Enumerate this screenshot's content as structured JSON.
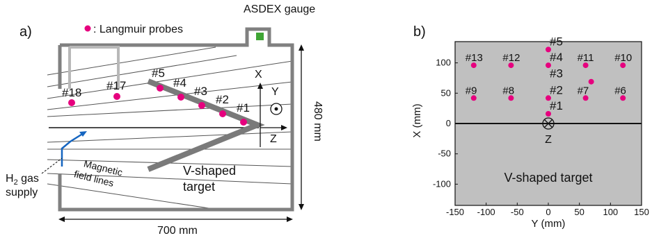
{
  "panel_a": {
    "panel_label": "a)",
    "legend": ": Langmuir probes",
    "gauge_label": "ASDEX gauge",
    "height_dim": "480 mm",
    "width_dim": "700 mm",
    "gas_label_h": "H",
    "gas_label_sub": "2",
    "gas_label_rest": " gas",
    "gas_label_line2": "supply",
    "field_label_1": "Magnetic",
    "field_label_2": "field lines",
    "target_label_1": "V-shaped",
    "target_label_2": "target",
    "axis_x": "X",
    "axis_y": "Y",
    "axis_z": "Z",
    "probe_labels": [
      "#18",
      "#17",
      "#5",
      "#4",
      "#3",
      "#2",
      "#1"
    ],
    "colors": {
      "probe": "#e6007e",
      "gauge": "#3fa535",
      "wall": "#808080",
      "field": "#5a5a5a",
      "gas": "#1565c0",
      "box": "#b0b0b0"
    }
  },
  "panel_b": {
    "panel_label": "b)",
    "target_label": "V-shaped target",
    "z_label": "Z",
    "probes": [
      {
        "name": "#13",
        "y": -120,
        "x": 96
      },
      {
        "name": "#12",
        "y": -60,
        "x": 96
      },
      {
        "name": "#11",
        "y": 60,
        "x": 96
      },
      {
        "name": "#10",
        "y": 120,
        "x": 96
      },
      {
        "name": "#9",
        "y": -120,
        "x": 42
      },
      {
        "name": "#8",
        "y": -60,
        "x": 42
      },
      {
        "name": "#7",
        "y": 60,
        "x": 42
      },
      {
        "name": "#6",
        "y": 120,
        "x": 42
      },
      {
        "name": "#5",
        "y": 0,
        "x": 122
      },
      {
        "name": "#4",
        "y": 0,
        "x": 96
      },
      {
        "name": "#3",
        "y": 69,
        "x": 69
      },
      {
        "name": "#2",
        "y": 0,
        "x": 42
      },
      {
        "name": "#1",
        "y": 0,
        "x": 16
      }
    ],
    "chart_data": {
      "type": "scatter",
      "xlabel": "Y (mm)",
      "ylabel": "X (mm)",
      "xlim": [
        -150,
        150
      ],
      "ylim": [
        -135,
        135
      ],
      "xticks": [
        -150,
        -100,
        -50,
        0,
        50,
        100,
        150
      ],
      "yticks": [
        -100,
        -50,
        0,
        50,
        100
      ],
      "background": "#c0c0c0"
    }
  }
}
